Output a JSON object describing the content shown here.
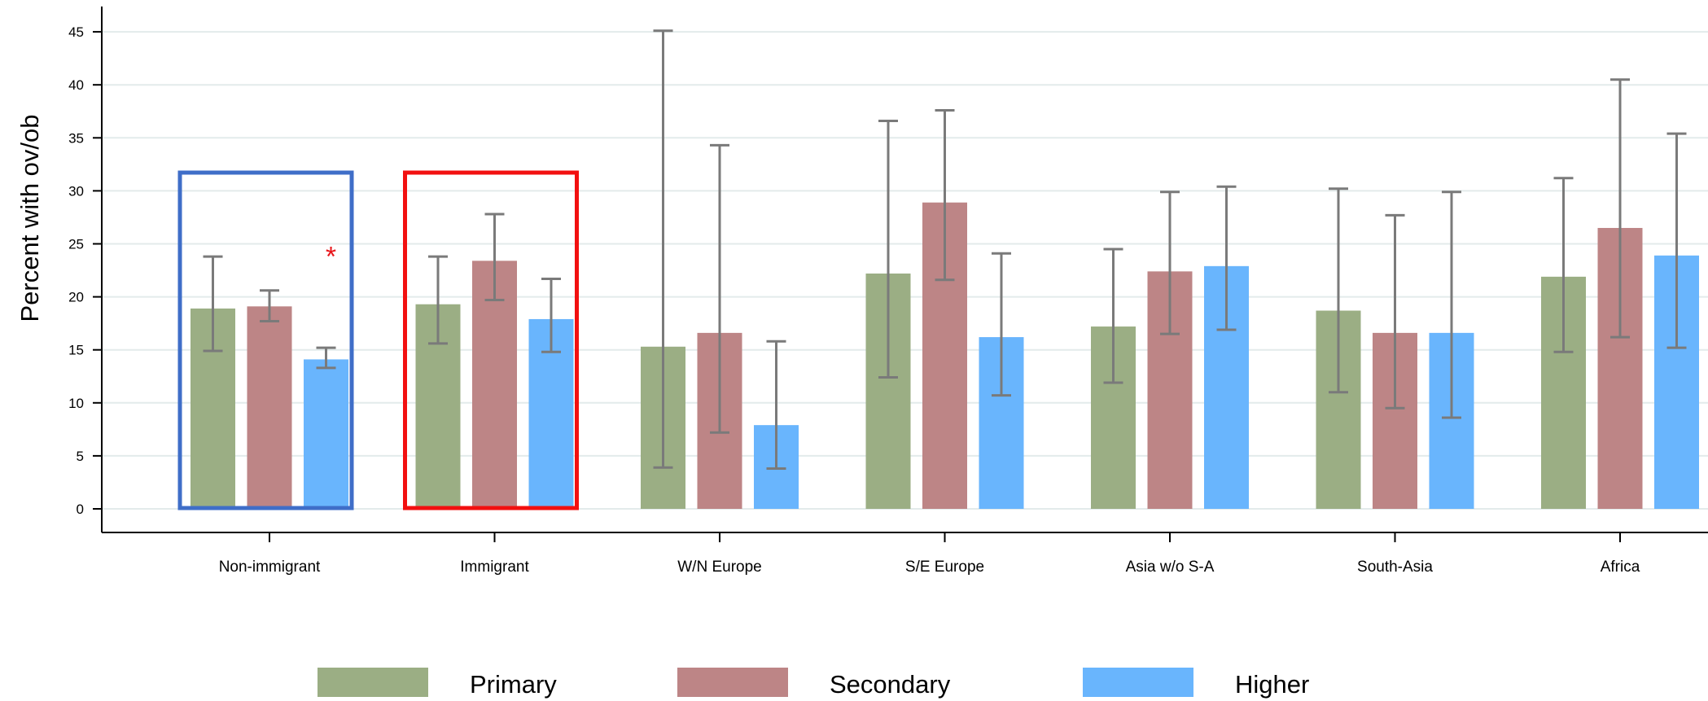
{
  "chart_data": {
    "type": "bar",
    "title": "",
    "xlabel": "",
    "ylabel": "Percent with ov/ob",
    "ylim": [
      0,
      46
    ],
    "yticks": [
      0,
      5,
      10,
      15,
      20,
      25,
      30,
      35,
      40,
      45
    ],
    "grid": true,
    "legend_position": "bottom",
    "categories": [
      "Non-immigrant",
      "Immigrant",
      "W/N Europe",
      "S/E Europe",
      "Asia w/o S-A",
      "South-Asia",
      "Africa"
    ],
    "series": [
      {
        "name": "Primary",
        "color": "#9bae84",
        "values": [
          18.9,
          19.3,
          15.3,
          22.2,
          17.2,
          18.7,
          21.9
        ],
        "ci_low": [
          14.9,
          15.6,
          3.9,
          12.4,
          11.9,
          11.0,
          14.8
        ],
        "ci_high": [
          23.8,
          23.8,
          45.1,
          36.6,
          24.5,
          30.2,
          31.2
        ]
      },
      {
        "name": "Secondary",
        "color": "#bd8586",
        "values": [
          19.1,
          23.4,
          16.6,
          28.9,
          22.4,
          16.6,
          26.5
        ],
        "ci_low": [
          17.7,
          19.7,
          7.2,
          21.6,
          16.5,
          9.5,
          16.2
        ],
        "ci_high": [
          20.6,
          27.8,
          34.3,
          37.6,
          29.9,
          27.7,
          40.5
        ]
      },
      {
        "name": "Higher",
        "color": "#69b5fd",
        "values": [
          14.1,
          17.9,
          7.9,
          16.2,
          22.9,
          16.6,
          23.9
        ],
        "ci_low": [
          13.3,
          14.8,
          3.8,
          10.7,
          16.9,
          8.6,
          15.2
        ],
        "ci_high": [
          15.2,
          21.7,
          15.8,
          24.1,
          30.4,
          29.9,
          35.4
        ]
      }
    ],
    "annotations": [
      {
        "type": "significance-marker",
        "text": "*",
        "category": "Non-immigrant",
        "series": "Higher",
        "color": "#e8161b"
      }
    ],
    "highlight_boxes": [
      {
        "category": "Non-immigrant",
        "color": "#3f6ec8"
      },
      {
        "category": "Immigrant",
        "color": "#f21010"
      }
    ],
    "colors": {
      "axis": "#000000",
      "grid": "#e3ebeb",
      "error_bar": "#7a7a7a"
    }
  }
}
